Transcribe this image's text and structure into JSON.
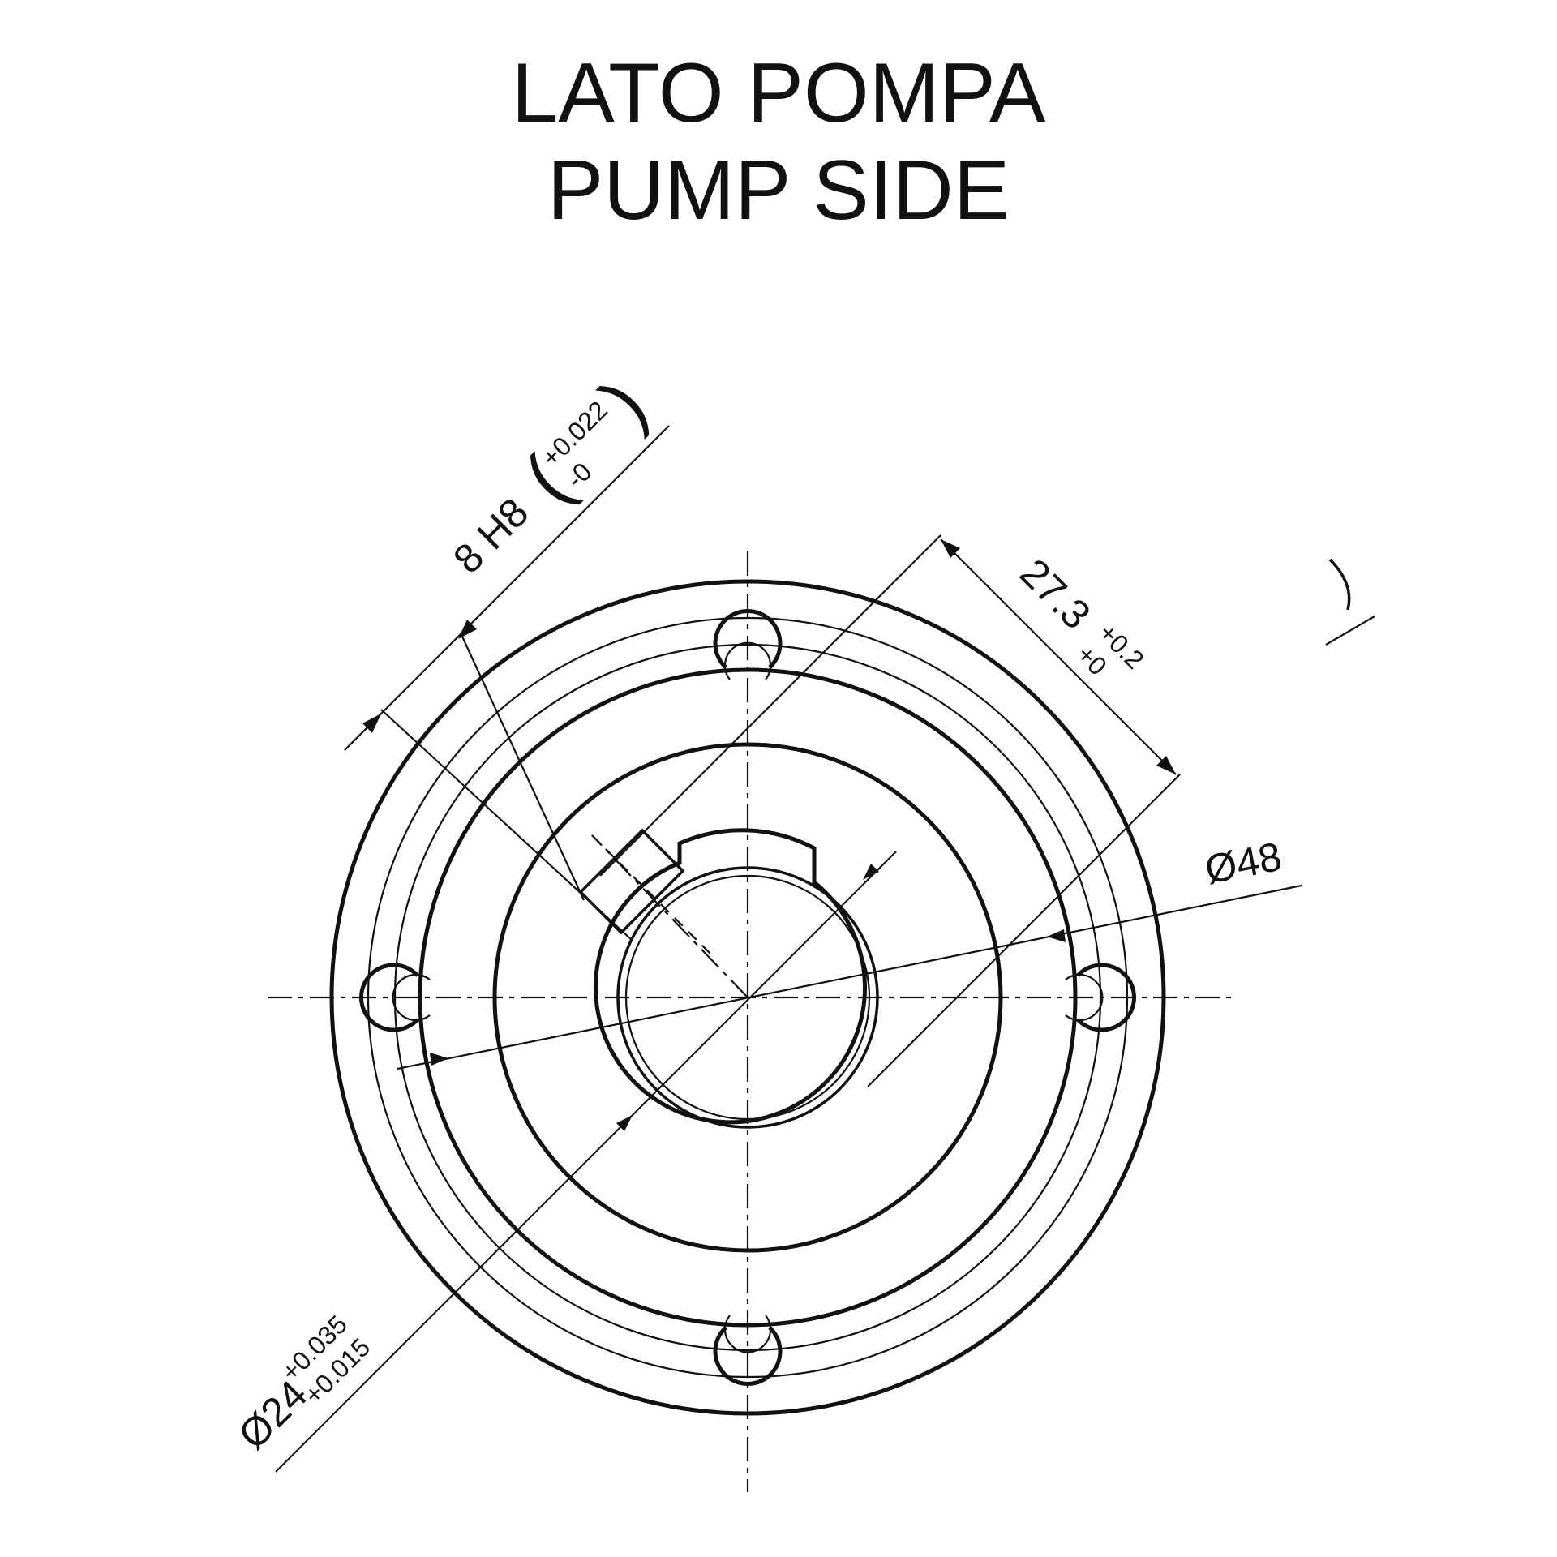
{
  "title": {
    "line1": "LATO POMPA",
    "line2": "PUMP SIDE"
  },
  "dimensions": {
    "keyway_width": {
      "nominal": "8 H8",
      "bracket_open": "(",
      "bracket_close": ")",
      "upper_tol": "+0.022",
      "lower_tol": "-0"
    },
    "key_height": {
      "nominal": "27.3",
      "upper_tol": "+0.2",
      "lower_tol": "+0"
    },
    "outer_diameter": {
      "label": "Ø48"
    },
    "bore_diameter": {
      "nominal": "Ø24",
      "upper_tol": "+0.035",
      "lower_tol": "+0.015"
    }
  },
  "colors": {
    "ink": "#111111",
    "background": "#ffffff"
  }
}
